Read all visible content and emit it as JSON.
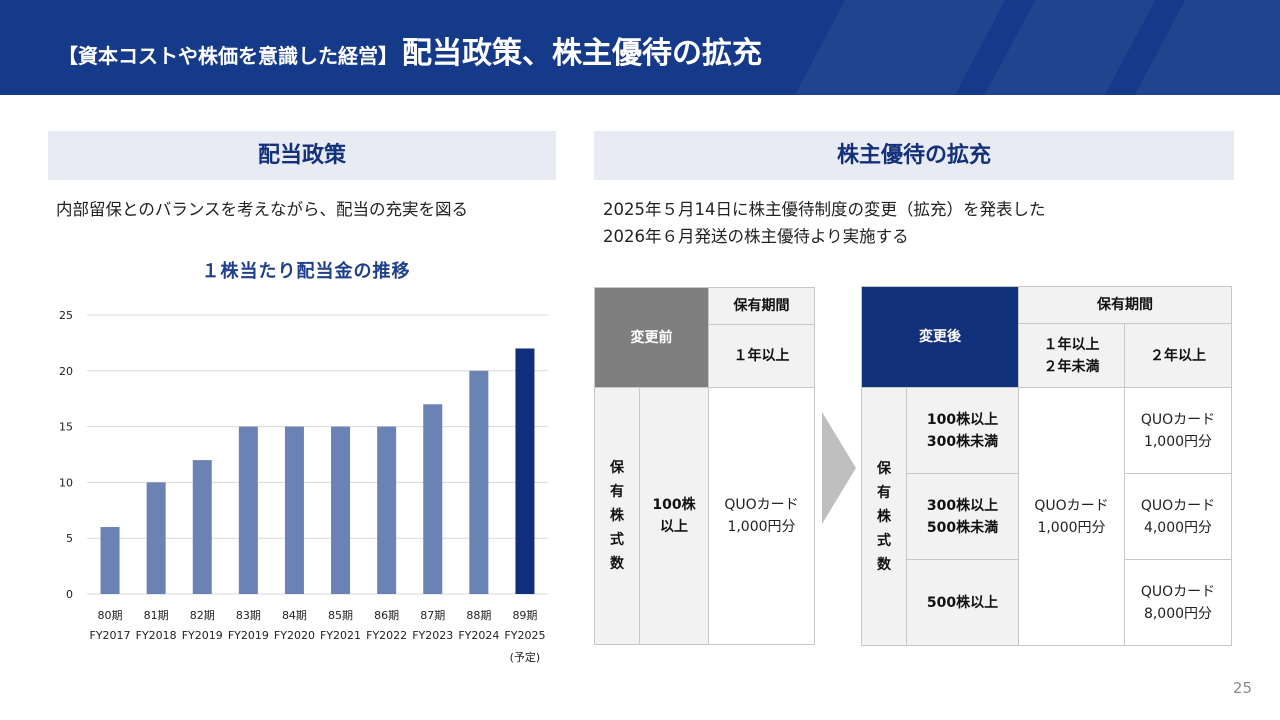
{
  "header": {
    "bracket_title": "【資本コストや株価を意識した経営】",
    "title": "配当政策、株主優待の拡充"
  },
  "left": {
    "section_title": "配当政策",
    "description": "内部留保とのバランスを考えながら、配当の充実を図る",
    "chart_title": "１株当たり配当金の推移"
  },
  "chart_data": {
    "type": "bar",
    "title": "１株当たり配当金の推移",
    "categories": [
      "80期 FY2017",
      "81期 FY2018",
      "82期 FY2019",
      "83期 FY2019",
      "84期 FY2020",
      "85期 FY2021",
      "86期 FY2022",
      "87期 FY2023",
      "88期 FY2024",
      "89期 FY2025 (予定)"
    ],
    "period_labels": [
      "80期",
      "81期",
      "82期",
      "83期",
      "84期",
      "85期",
      "86期",
      "87期",
      "88期",
      "89期"
    ],
    "fy_labels": [
      "FY2017",
      "FY2018",
      "FY2019",
      "FY2019",
      "FY2020",
      "FY2021",
      "FY2022",
      "FY2023",
      "FY2024",
      "FY2025"
    ],
    "note_label": "(予定)",
    "values": [
      6,
      10,
      12,
      15,
      15,
      15,
      15,
      17,
      20,
      22
    ],
    "ylim": [
      0,
      25
    ],
    "yticks": [
      0,
      5,
      10,
      15,
      20,
      25
    ],
    "xlabel": "",
    "ylabel": "",
    "grid": true,
    "colors": {
      "bar": "#6a82b4",
      "highlight": "#0f2f7c",
      "grid": "#d9d9d9"
    }
  },
  "right": {
    "section_title": "株主優待の拡充",
    "description_line1": "2025年５月14日に株主優待制度の変更（拡充）を発表した",
    "description_line2": "2026年６月発送の株主優待より実施する"
  },
  "before_table": {
    "header": "変更前",
    "period_header": "保有期間",
    "period_value": "１年以上",
    "row_header": "保有株式数",
    "shares": "100株以上",
    "reward": "QUOカード 1,000円分"
  },
  "after_table": {
    "header": "変更後",
    "period_header": "保有期間",
    "period_col1": "１年以上 ２年未満",
    "period_col2": "２年以上",
    "row_header": "保有株式数",
    "rows": [
      {
        "shares": "100株以上 300株未満",
        "reward2": "QUOカード 1,000円分"
      },
      {
        "shares": "300株以上 500株未満",
        "reward2": "QUOカード 4,000円分"
      },
      {
        "shares": "500株以上",
        "reward2": "QUOカード 8,000円分"
      }
    ],
    "reward1": "QUOカード 1,000円分"
  },
  "page_number": "25",
  "colors": {
    "navy": "#163a8a",
    "section_bg": "#e8ebf3",
    "gray_header": "#7f7f7f"
  }
}
